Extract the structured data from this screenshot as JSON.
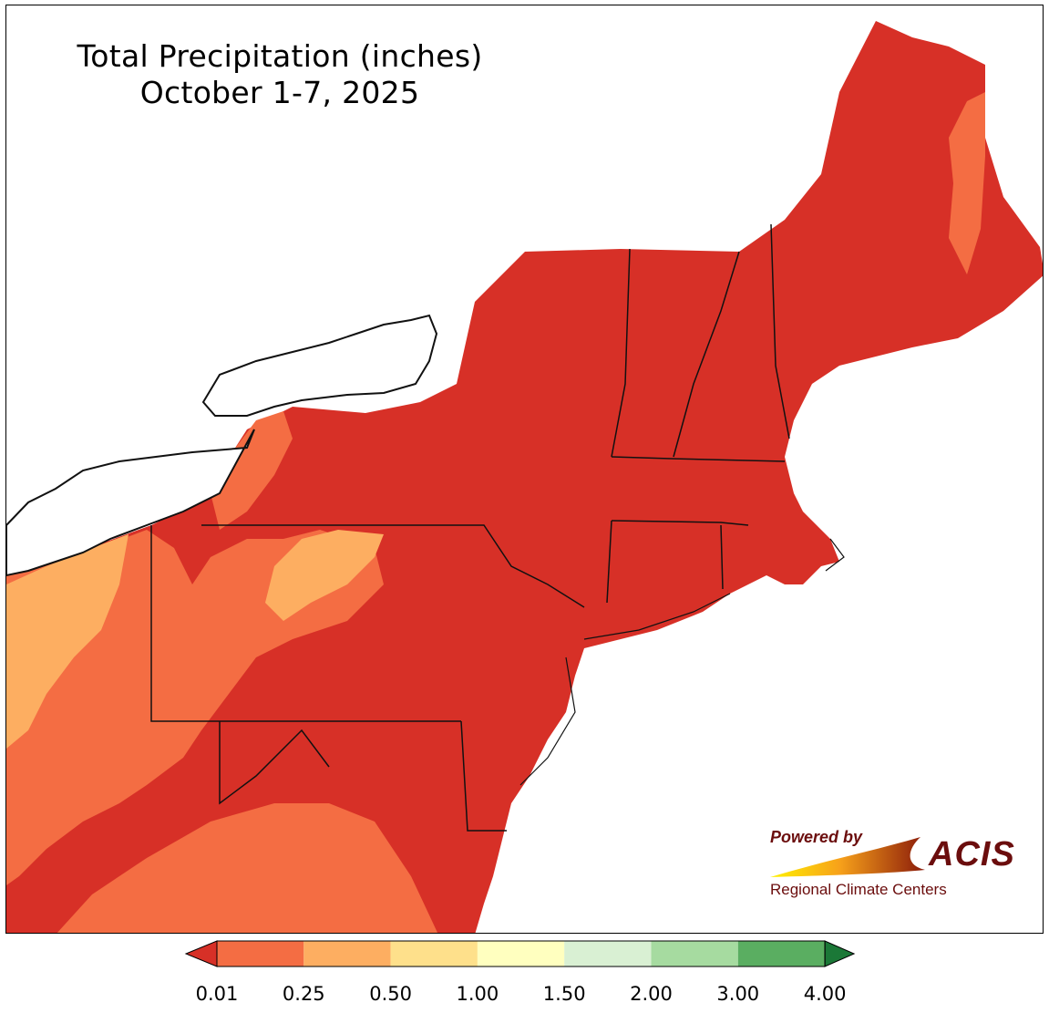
{
  "map": {
    "title": "Total Precipitation (inches)",
    "subtitle": "October 1-7, 2025",
    "region": "Northeast United States",
    "colors": {
      "lake": "#ffffff",
      "ocean": "#ffffff",
      "border": "#000000"
    }
  },
  "legend": {
    "bins": [
      {
        "from": 0.01,
        "to": 0.25,
        "color": "#f46d43"
      },
      {
        "from": 0.25,
        "to": 0.5,
        "color": "#fdae61"
      },
      {
        "from": 0.5,
        "to": 1.0,
        "color": "#fee08b"
      },
      {
        "from": 1.0,
        "to": 1.5,
        "color": "#ffffbf"
      },
      {
        "from": 1.5,
        "to": 2.0,
        "color": "#d9f0d3"
      },
      {
        "from": 2.0,
        "to": 3.0,
        "color": "#a6dba0"
      },
      {
        "from": 3.0,
        "to": 4.0,
        "color": "#5aae61"
      }
    ],
    "under_color": "#d73027",
    "over_color": "#1b7837",
    "tick_labels": [
      "0.01",
      "0.25",
      "0.50",
      "1.00",
      "1.50",
      "2.00",
      "3.00",
      "4.00"
    ]
  },
  "logo": {
    "powered_by": "Powered by",
    "brand": "ACIS",
    "org": "Regional Climate Centers"
  }
}
